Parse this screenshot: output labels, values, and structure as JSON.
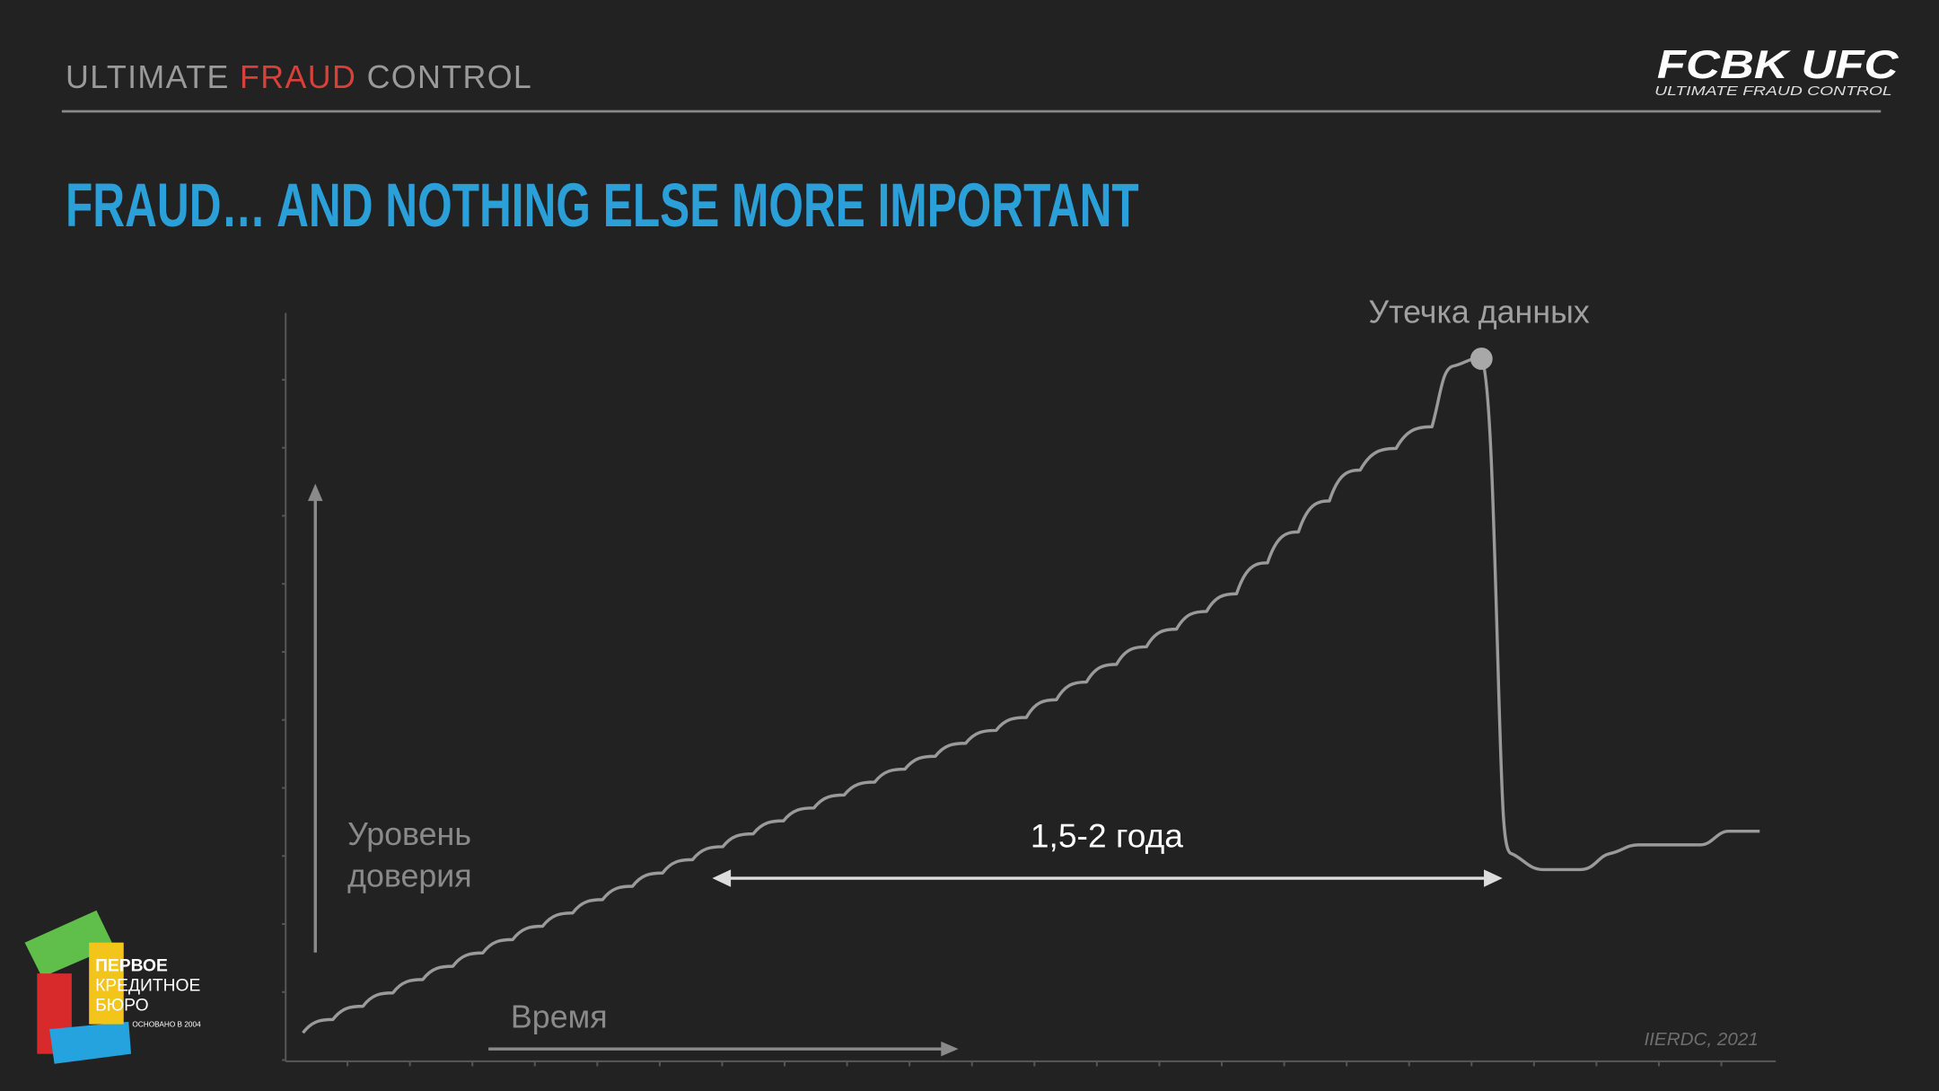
{
  "header": {
    "title_parts": [
      "ULTIMATE",
      "FRAUD",
      "CONTROL"
    ],
    "logo": "FCBK UFC",
    "logo_subtitle": "ULTIMATE FRAUD CONTROL"
  },
  "title": "FRAUD… AND NOTHING ELSE MORE IMPORTANT",
  "diagram": {
    "peak_label": "Утечка данных",
    "duration_label": "1,5-2 года",
    "y_axis_label": [
      "Уровень",
      "доверия"
    ],
    "x_axis_label": "Время",
    "source": "IIERDC, 2021"
  },
  "footer_logo": {
    "lines": [
      "ПЕРВОЕ",
      "КРЕДИТНОЕ",
      "БЮРО"
    ],
    "tagline": "ОСНОВАНО В 2004"
  }
}
